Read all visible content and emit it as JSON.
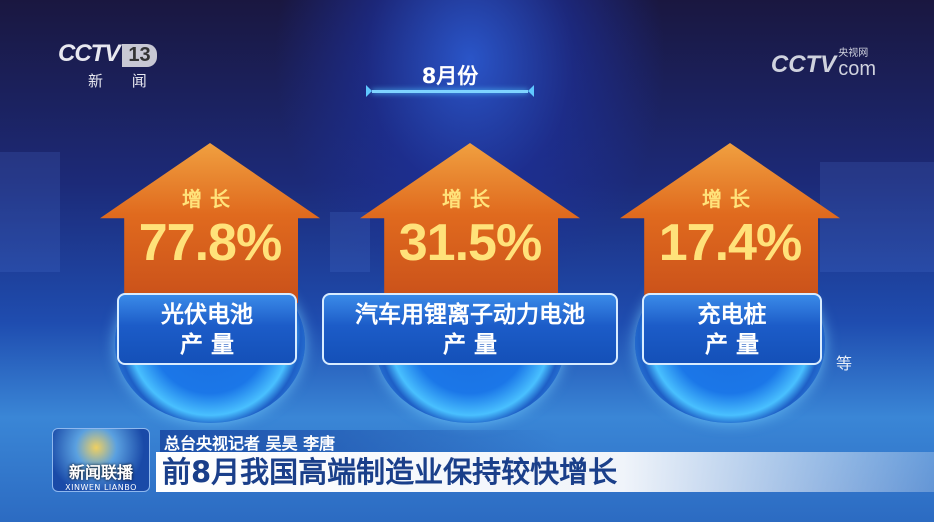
{
  "channel_logo": {
    "brand": "CCTV",
    "number": "13",
    "subtitle": "新 闻"
  },
  "web_logo": {
    "brand": "CCTV",
    "cn": "央视网",
    "suffix": "com"
  },
  "period": "8月份",
  "cards": [
    {
      "growth_label": "增长",
      "value": "77.8%",
      "label_line1": "光伏电池",
      "label_line2": "产 量"
    },
    {
      "growth_label": "增长",
      "value": "31.5%",
      "label_line1": "汽车用锂离子动力电池",
      "label_line2": "产 量"
    },
    {
      "growth_label": "增长",
      "value": "17.4%",
      "label_line1": "充电桩",
      "label_line2": "产 量"
    }
  ],
  "etc": "等",
  "program_logo": {
    "cn": "新闻联播",
    "en": "XINWEN LIANBO"
  },
  "reporter": "总台央视记者 吴昊 李唐",
  "headline": "前8月我国高端制造业保持较快增长",
  "colors": {
    "arrow": "#e06a1e",
    "value_text": "#ffe27a",
    "label_box": "#1c5cc8",
    "headline_text": "#1a3f8a"
  }
}
